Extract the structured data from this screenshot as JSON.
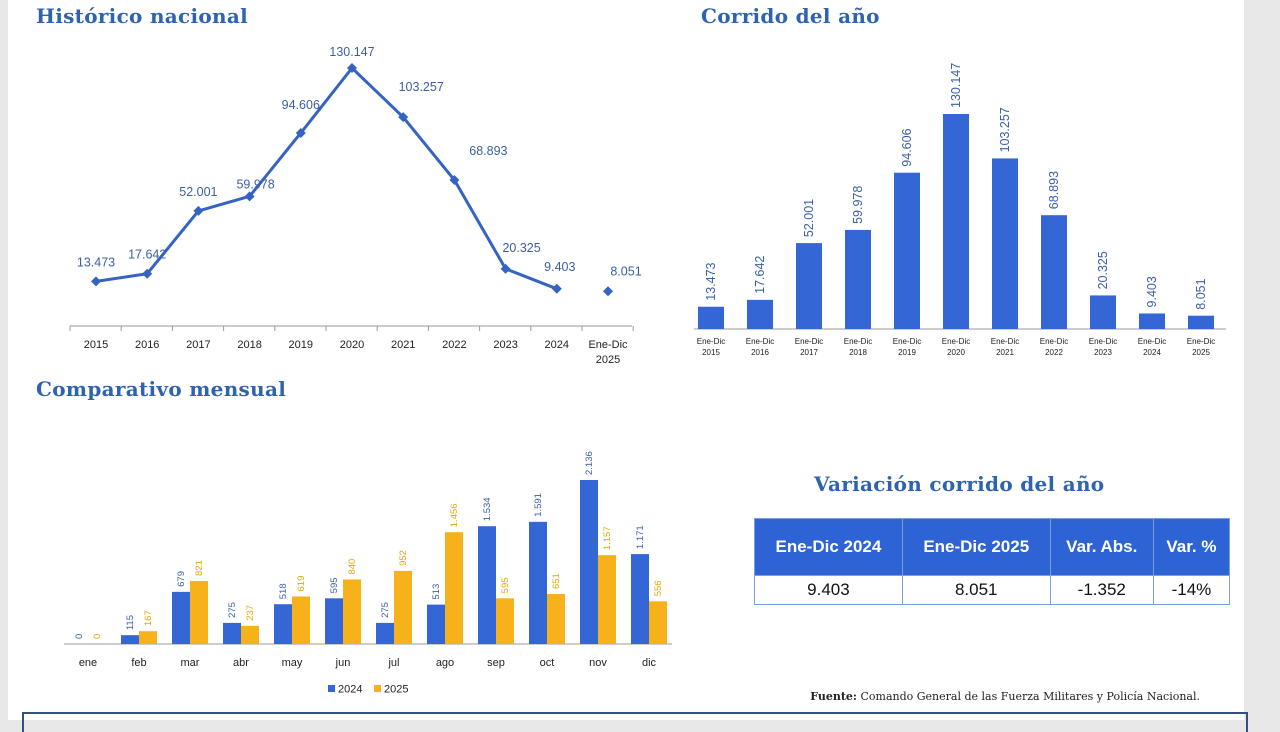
{
  "titles": {
    "historico": "Histórico nacional",
    "corrido": "Corrido del año",
    "mensual": "Comparativo mensual",
    "variacion": "Variación corrido del año"
  },
  "colors": {
    "blue": "#3566d6",
    "line": "#3463c4",
    "orange": "#f7b21b",
    "title": "#2e63b0"
  },
  "chart_data": [
    {
      "id": "historico",
      "type": "line",
      "categories": [
        "2015",
        "2016",
        "2017",
        "2018",
        "2019",
        "2020",
        "2021",
        "2022",
        "2023",
        "2024",
        "Ene-Dic 2025"
      ],
      "values": [
        13473,
        17642,
        52001,
        59978,
        94606,
        130147,
        103257,
        68893,
        20325,
        9403,
        8051
      ],
      "labels": [
        "13.473",
        "17.642",
        "52.001",
        "59.978",
        "94.606",
        "130.147",
        "103.257",
        "68.893",
        "20.325",
        "9.403",
        "8.051"
      ],
      "connected_points": 10,
      "title": "Histórico nacional"
    },
    {
      "id": "corrido",
      "type": "bar",
      "categories": [
        "Ene-Dic 2015",
        "Ene-Dic 2016",
        "Ene-Dic 2017",
        "Ene-Dic 2018",
        "Ene-Dic 2019",
        "Ene-Dic 2020",
        "Ene-Dic 2021",
        "Ene-Dic 2022",
        "Ene-Dic 2023",
        "Ene-Dic 2024",
        "Ene-Dic 2025"
      ],
      "values": [
        13473,
        17642,
        52001,
        59978,
        94606,
        130147,
        103257,
        68893,
        20325,
        9403,
        8051
      ],
      "labels": [
        "13.473",
        "17.642",
        "52.001",
        "59.978",
        "94.606",
        "130.147",
        "103.257",
        "68.893",
        "20.325",
        "9.403",
        "8.051"
      ],
      "title": "Corrido del año"
    },
    {
      "id": "mensual",
      "type": "bar",
      "categories": [
        "ene",
        "feb",
        "mar",
        "abr",
        "may",
        "jun",
        "jul",
        "ago",
        "sep",
        "oct",
        "nov",
        "dic"
      ],
      "series": [
        {
          "name": "2024",
          "values": [
            0,
            115,
            679,
            275,
            518,
            595,
            275,
            513,
            1534,
            1591,
            2136,
            1171
          ],
          "labels": [
            "0",
            "115",
            "679",
            "275",
            "518",
            "595",
            "275",
            "513",
            "1.534",
            "1.591",
            "2.136",
            "1.171"
          ]
        },
        {
          "name": "2025",
          "values": [
            0,
            167,
            821,
            237,
            619,
            840,
            952,
            1456,
            595,
            651,
            1157,
            556
          ],
          "labels": [
            "0",
            "167",
            "821",
            "237",
            "619",
            "840",
            "952",
            "1.456",
            "595",
            "651",
            "1.157",
            "556"
          ]
        }
      ],
      "legend": "bottom",
      "title": "Comparativo mensual"
    }
  ],
  "table": {
    "title": "Variación corrido del año",
    "headers": [
      "Ene-Dic 2024",
      "Ene-Dic 2025",
      "Var. Abs.",
      "Var. %"
    ],
    "row": [
      "9.403",
      "8.051",
      "-1.352",
      "-14%"
    ]
  },
  "source": {
    "label": "Fuente:",
    "text": "Comando General de las Fuerza Militares y Policía Nacional."
  }
}
